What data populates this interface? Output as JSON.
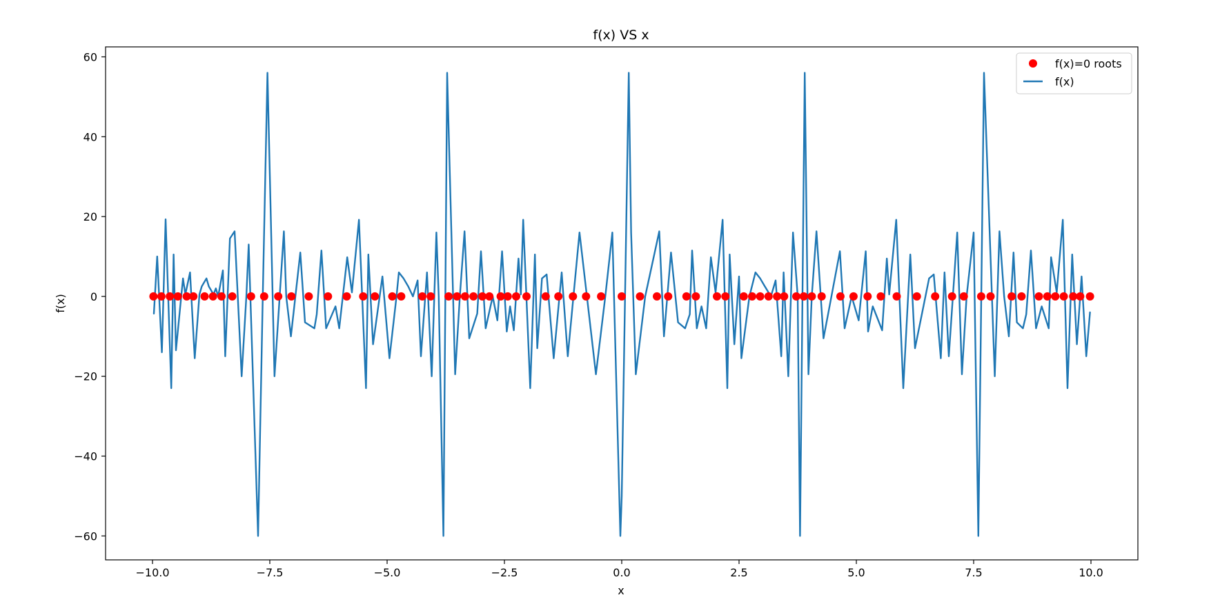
{
  "chart_data": {
    "type": "line",
    "title": "f(x) VS x",
    "xlabel": "x",
    "ylabel": "f(x)",
    "xlim": [
      -11.0,
      11.0
    ],
    "ylim": [
      -66.0,
      62.5
    ],
    "x_ticks": [
      -10.0,
      -7.5,
      -5.0,
      -2.5,
      0.0,
      2.5,
      5.0,
      7.5,
      10.0
    ],
    "x_tick_labels": [
      "−10.0",
      "−7.5",
      "−5.0",
      "−2.5",
      "0.0",
      "2.5",
      "5.0",
      "7.5",
      "10.0"
    ],
    "y_ticks": [
      -60,
      -40,
      -20,
      0,
      20,
      40,
      60
    ],
    "y_tick_labels": [
      "−60",
      "−40",
      "−20",
      "0",
      "20",
      "40",
      "60"
    ],
    "grid": false,
    "legend_position": "top-right",
    "series": [
      {
        "name": "f(x)=0 roots",
        "kind": "scatter",
        "color": "#ff0000",
        "y": 0,
        "x": [
          -9.98,
          -9.81,
          -9.63,
          -9.46,
          -9.27,
          -9.13,
          -8.89,
          -8.71,
          -8.53,
          -8.3,
          -7.9,
          -7.62,
          -7.32,
          -7.04,
          -6.67,
          -6.26,
          -5.86,
          -5.51,
          -5.26,
          -4.89,
          -4.7,
          -4.25,
          -4.07,
          -3.69,
          -3.51,
          -3.34,
          -3.16,
          -2.97,
          -2.82,
          -2.58,
          -2.43,
          -2.25,
          -2.03,
          -1.62,
          -1.35,
          -1.04,
          -0.76,
          -0.44,
          0.0,
          0.39,
          0.75,
          0.99,
          1.38,
          1.58,
          2.03,
          2.21,
          2.6,
          2.78,
          2.95,
          3.13,
          3.31,
          3.46,
          3.72,
          3.88,
          4.05,
          4.26,
          4.66,
          4.94,
          5.24,
          5.52,
          5.86,
          6.29,
          6.68,
          7.04,
          7.29,
          7.66,
          7.86,
          8.31,
          8.52,
          8.89,
          9.07,
          9.24,
          9.42,
          9.62,
          9.77,
          9.98
        ]
      },
      {
        "name": "f(x)",
        "kind": "line",
        "color": "#1f77b4",
        "x": [
          -9.97,
          -9.9,
          -9.8,
          -9.72,
          -9.6,
          -9.55,
          -9.5,
          -9.35,
          -9.3,
          -9.2,
          -9.1,
          -9.0,
          -8.95,
          -8.85,
          -8.8,
          -8.7,
          -8.65,
          -8.6,
          -8.5,
          -8.45,
          -8.35,
          -8.25,
          -8.1,
          -8.0,
          -7.95,
          -7.75,
          -7.65,
          -7.55,
          -7.4,
          -7.2,
          -7.15,
          -7.05,
          -6.85,
          -6.75,
          -6.55,
          -6.5,
          -6.4,
          -6.3,
          -6.1,
          -6.02,
          -5.85,
          -5.75,
          -5.6,
          -5.45,
          -5.4,
          -5.3,
          -5.1,
          -4.95,
          -4.8,
          -4.75,
          -4.65,
          -4.55,
          -4.45,
          -4.35,
          -4.28,
          -4.15,
          -4.05,
          -3.95,
          -3.9,
          -3.8,
          -3.72,
          -3.55,
          -3.45,
          -3.35,
          -3.25,
          -3.08,
          -3.0,
          -2.9,
          -2.75,
          -2.65,
          -2.55,
          -2.45,
          -2.38,
          -2.3,
          -2.2,
          -2.15,
          -2.1,
          -1.95,
          -1.85,
          -1.8,
          -1.7,
          -1.6,
          -1.45,
          -1.28,
          -1.15,
          -0.9,
          -0.55,
          -0.35,
          -0.2,
          -0.03,
          0.0,
          0.15,
          0.2,
          0.3,
          0.5,
          0.8,
          0.9,
          1.05,
          1.2,
          1.35,
          1.45,
          1.5,
          1.6,
          1.7,
          1.8,
          1.9,
          2.0,
          2.15,
          2.25,
          2.3,
          2.4,
          2.5,
          2.55,
          2.72,
          2.85,
          2.95,
          3.05,
          3.18,
          3.28,
          3.4,
          3.45,
          3.55,
          3.65,
          3.75,
          3.8,
          3.9,
          3.98,
          4.05,
          4.15,
          4.3,
          4.4,
          4.65,
          4.75,
          4.9,
          5.05,
          5.2,
          5.25,
          5.35,
          5.55,
          5.65,
          5.7,
          5.85,
          6.0,
          6.15,
          6.25,
          6.55,
          6.65,
          6.8,
          6.88,
          6.97,
          7.15,
          7.25,
          7.35,
          7.5,
          7.6,
          7.72,
          7.95,
          8.05,
          8.15,
          8.25,
          8.35,
          8.42,
          8.55,
          8.62,
          8.72,
          8.83,
          8.95,
          9.1,
          9.15,
          9.27,
          9.4,
          9.5,
          9.6,
          9.7,
          9.8,
          9.9,
          9.98
        ],
        "y": [
          -4.3,
          10.0,
          -14.0,
          19.3,
          -23.0,
          10.5,
          -13.5,
          4.5,
          0.5,
          6.0,
          -15.5,
          0.5,
          2.5,
          4.5,
          2.5,
          0.5,
          2.0,
          0.0,
          6.5,
          -15.0,
          14.5,
          16.3,
          -20.0,
          0.0,
          13.0,
          -60.0,
          0.0,
          56.0,
          -20.0,
          16.3,
          0.0,
          -10.0,
          11.0,
          -6.5,
          -8.0,
          -4.5,
          11.5,
          -8.0,
          -2.5,
          -8.0,
          9.8,
          1.0,
          19.2,
          -23.0,
          10.5,
          -12.0,
          5.0,
          -15.5,
          0.0,
          6.0,
          4.5,
          2.5,
          0.0,
          4.0,
          -15.0,
          6.0,
          -20.0,
          16.0,
          0.0,
          -60.0,
          56.0,
          -19.5,
          0.0,
          16.3,
          -10.5,
          -4.3,
          11.3,
          -8.0,
          0.0,
          -6.0,
          11.3,
          -8.8,
          -2.5,
          -8.5,
          9.5,
          0.5,
          19.2,
          -23.0,
          10.5,
          -13.0,
          4.5,
          5.5,
          -15.5,
          6.0,
          -15.0,
          16.0,
          -19.5,
          0.0,
          16.0,
          -60.0,
          -50.0,
          56.0,
          16.0,
          -19.5,
          0.0,
          16.3,
          -10.0,
          11.0,
          -6.5,
          -8.0,
          -4.5,
          11.5,
          -8.0,
          -2.5,
          -8.0,
          9.8,
          1.0,
          19.2,
          -23.0,
          10.5,
          -12.0,
          5.0,
          -15.5,
          0.0,
          6.0,
          4.5,
          2.5,
          0.0,
          4.0,
          -15.0,
          6.0,
          -20.0,
          16.0,
          0.0,
          -60.0,
          56.0,
          -19.5,
          0.0,
          16.3,
          -10.5,
          -4.3,
          11.3,
          -8.0,
          0.0,
          -6.0,
          11.3,
          -8.8,
          -2.5,
          -8.5,
          9.5,
          0.5,
          19.2,
          -23.0,
          10.5,
          -13.0,
          4.5,
          5.5,
          -15.5,
          6.0,
          -15.0,
          16.0,
          -19.5,
          0.0,
          16.0,
          -60.0,
          56.0,
          -20.0,
          16.3,
          0.0,
          -10.0,
          11.0,
          -6.5,
          -8.0,
          -4.5,
          11.5,
          -8.0,
          -2.5,
          -8.0,
          9.8,
          1.0,
          19.2,
          -23.0,
          10.5,
          -12.0,
          5.0,
          -15.0,
          -4.0
        ]
      }
    ]
  }
}
